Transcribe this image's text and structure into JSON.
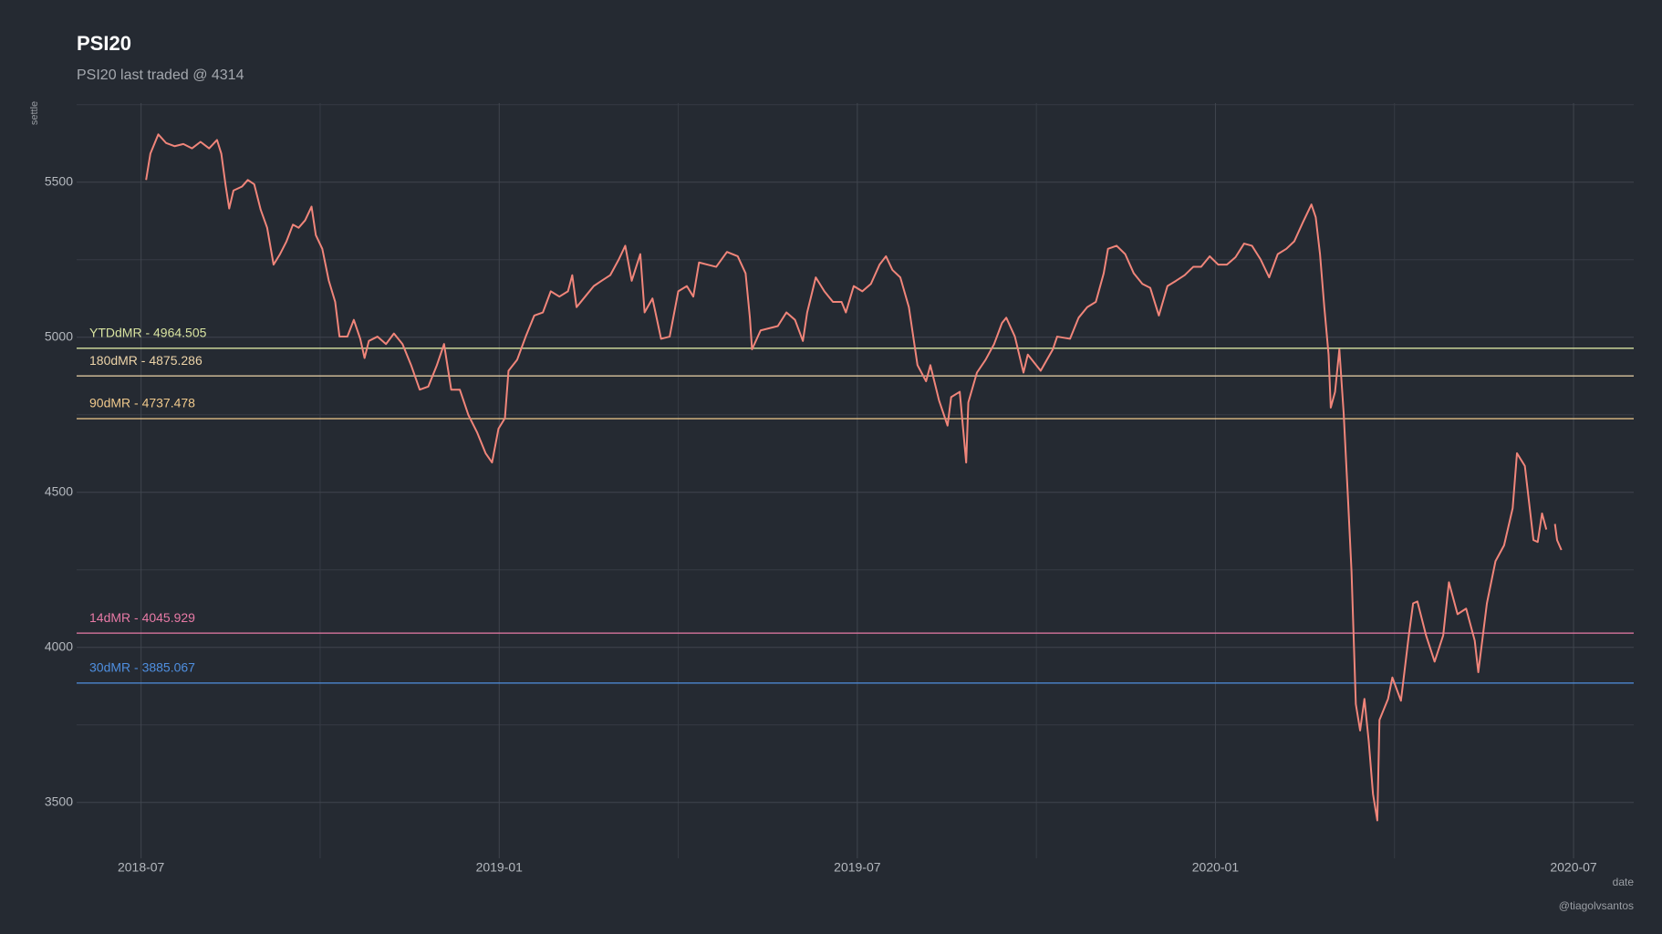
{
  "chart_data": {
    "type": "line",
    "title": "PSI20",
    "subtitle": "PSI20 last traded @ 4314",
    "x_label": "date",
    "y_label": "settle",
    "caption": "@tiagolvsantos",
    "color": "#f0857a",
    "grid": true,
    "xlim": [
      2018.41,
      2020.584
    ],
    "ylim": [
      3320,
      5755
    ],
    "xticks": [
      {
        "value": 2018.5,
        "label": "2018-07"
      },
      {
        "value": 2019.0,
        "label": "2019-01"
      },
      {
        "value": 2019.5,
        "label": "2019-07"
      },
      {
        "value": 2020.0,
        "label": "2020-01"
      },
      {
        "value": 2020.5,
        "label": "2020-07"
      }
    ],
    "yticks": [
      3500,
      4000,
      4500,
      5000,
      5500
    ],
    "reference_lines": [
      {
        "label": "YTDdMR - 4964.505",
        "value": 4964.505,
        "color": "#d8e3a0"
      },
      {
        "label": "180dMR - 4875.286",
        "value": 4875.286,
        "color": "#ecd3a8"
      },
      {
        "label": "90dMR - 4737.478",
        "value": 4737.478,
        "color": "#f0c98c"
      },
      {
        "label": "14dMR - 4045.929",
        "value": 4045.929,
        "color": "#e87aa6"
      },
      {
        "label": "30dMR - 3885.067",
        "value": 3885.067,
        "color": "#4f8fe0"
      }
    ],
    "x": [
      2018.507,
      2018.513,
      2018.524,
      2018.535,
      2018.547,
      2018.559,
      2018.571,
      2018.583,
      2018.595,
      2018.606,
      2018.612,
      2018.618,
      2018.623,
      2018.629,
      2018.641,
      2018.649,
      2018.658,
      2018.667,
      2018.676,
      2018.685,
      2018.694,
      2018.703,
      2018.712,
      2018.72,
      2018.729,
      2018.738,
      2018.744,
      2018.753,
      2018.762,
      2018.771,
      2018.777,
      2018.788,
      2018.797,
      2018.806,
      2018.812,
      2018.818,
      2018.83,
      2018.842,
      2018.853,
      2018.865,
      2018.877,
      2018.889,
      2018.901,
      2018.913,
      2018.923,
      2018.933,
      2018.945,
      2018.957,
      2018.969,
      2018.981,
      2018.99,
      2018.999,
      2019.008,
      2019.013,
      2019.025,
      2019.037,
      2019.049,
      2019.061,
      2019.072,
      2019.084,
      2019.096,
      2019.102,
      2019.108,
      2019.12,
      2019.132,
      2019.143,
      2019.155,
      2019.167,
      2019.176,
      2019.185,
      2019.197,
      2019.203,
      2019.214,
      2019.226,
      2019.238,
      2019.25,
      2019.262,
      2019.271,
      2019.279,
      2019.291,
      2019.303,
      2019.318,
      2019.333,
      2019.344,
      2019.35,
      2019.353,
      2019.365,
      2019.377,
      2019.389,
      2019.401,
      2019.413,
      2019.424,
      2019.43,
      2019.442,
      2019.454,
      2019.466,
      2019.478,
      2019.484,
      2019.495,
      2019.507,
      2019.519,
      2019.531,
      2019.54,
      2019.549,
      2019.56,
      2019.572,
      2019.584,
      2019.596,
      2019.602,
      2019.614,
      2019.626,
      2019.631,
      2019.643,
      2019.652,
      2019.655,
      2019.667,
      2019.679,
      2019.691,
      2019.702,
      2019.708,
      2019.72,
      2019.732,
      2019.738,
      2019.756,
      2019.773,
      2019.779,
      2019.797,
      2019.809,
      2019.821,
      2019.833,
      2019.844,
      2019.85,
      2019.862,
      2019.874,
      2019.886,
      2019.898,
      2019.909,
      2019.921,
      2019.933,
      2019.945,
      2019.957,
      2019.969,
      2019.98,
      2019.992,
      2020.004,
      2020.016,
      2020.028,
      2020.04,
      2020.051,
      2020.063,
      2020.075,
      2020.087,
      2020.099,
      2020.11,
      2020.122,
      2020.134,
      2020.14,
      2020.146,
      2020.152,
      2020.158,
      2020.161,
      2020.167,
      2020.173,
      2020.179,
      2020.185,
      2020.19,
      2020.196,
      2020.202,
      2020.208,
      2020.214,
      2020.22,
      2020.226,
      2020.229,
      2020.241,
      2020.247,
      2020.259,
      2020.27,
      2020.276,
      2020.282,
      2020.294,
      2020.306,
      2020.318,
      2020.326,
      2020.338,
      2020.35,
      2020.362,
      2020.367,
      2020.379,
      2020.391,
      2020.403,
      2020.415,
      2020.421,
      2020.432,
      2020.444,
      2020.45,
      2020.456,
      2020.462,
      2020.465,
      2020.474,
      2020.477,
      2020.483
    ],
    "values": [
      5507,
      5592,
      5654,
      5626,
      5616,
      5623,
      5609,
      5630,
      5609,
      5636,
      5592,
      5490,
      5415,
      5473,
      5486,
      5507,
      5493,
      5411,
      5353,
      5234,
      5268,
      5309,
      5363,
      5353,
      5377,
      5421,
      5329,
      5285,
      5183,
      5114,
      5002,
      5002,
      5056,
      4995,
      4933,
      4988,
      5002,
      4978,
      5012,
      4978,
      4910,
      4831,
      4841,
      4910,
      4978,
      4831,
      4831,
      4749,
      4694,
      4626,
      4596,
      4705,
      4739,
      4892,
      4927,
      5002,
      5070,
      5080,
      5148,
      5131,
      5148,
      5200,
      5097,
      5131,
      5165,
      5182,
      5200,
      5251,
      5295,
      5182,
      5268,
      5080,
      5125,
      4995,
      5002,
      5148,
      5165,
      5131,
      5241,
      5234,
      5227,
      5275,
      5261,
      5206,
      5063,
      4961,
      5022,
      5029,
      5036,
      5080,
      5056,
      4988,
      5080,
      5193,
      5148,
      5114,
      5114,
      5080,
      5165,
      5148,
      5172,
      5234,
      5261,
      5217,
      5193,
      5097,
      4910,
      4858,
      4910,
      4797,
      4715,
      4807,
      4824,
      4596,
      4790,
      4886,
      4927,
      4978,
      5046,
      5063,
      5002,
      4886,
      4944,
      4892,
      4961,
      5002,
      4995,
      5063,
      5097,
      5114,
      5206,
      5285,
      5295,
      5268,
      5206,
      5172,
      5159,
      5070,
      5165,
      5182,
      5200,
      5227,
      5227,
      5261,
      5234,
      5234,
      5258,
      5302,
      5295,
      5251,
      5193,
      5268,
      5285,
      5309,
      5370,
      5428,
      5387,
      5268,
      5097,
      4943,
      4773,
      4824,
      4961,
      4756,
      4483,
      4244,
      3817,
      3732,
      3834,
      3698,
      3527,
      3442,
      3766,
      3834,
      3903,
      3828,
      4039,
      4142,
      4148,
      4039,
      3954,
      4039,
      4210,
      4107,
      4125,
      4022,
      3920,
      4142,
      4278,
      4329,
      4449,
      4626,
      4585,
      4346,
      4340,
      4432,
      4380,
      null,
      4398,
      4346,
      4314
    ]
  }
}
